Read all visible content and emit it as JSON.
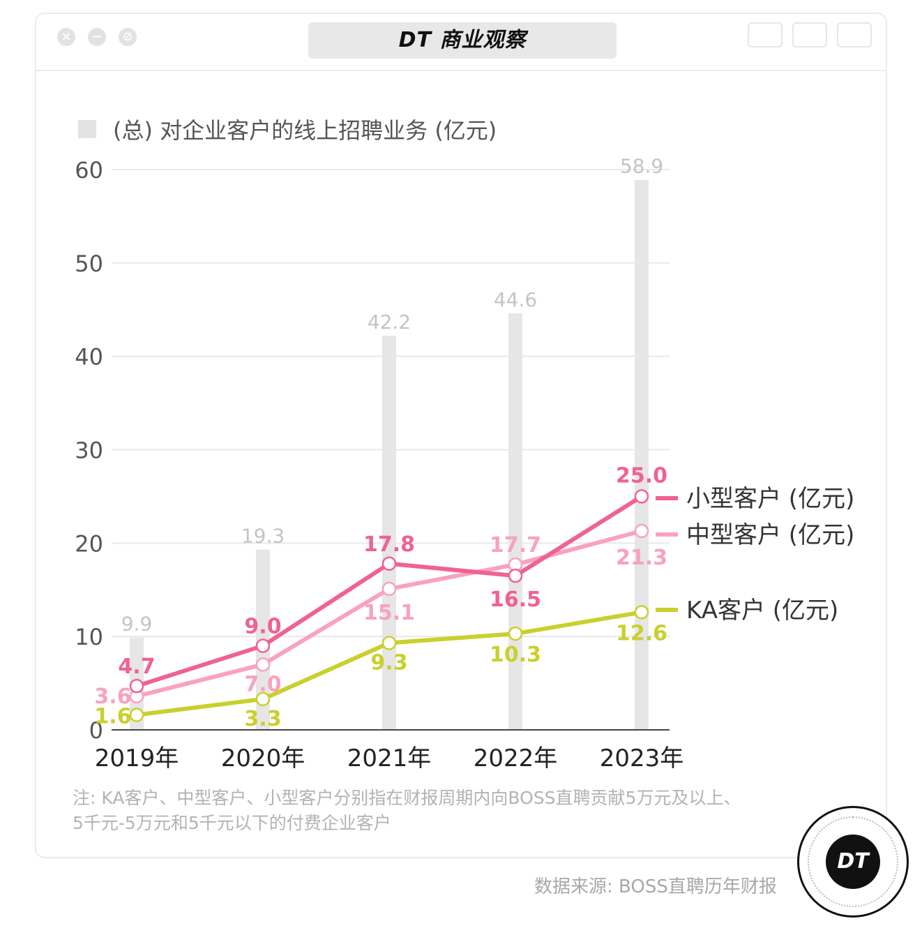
{
  "window": {
    "title": "DT 商业观察",
    "logo_text": "DT"
  },
  "note": {
    "line1": "注: KA客户、中型客户、小型客户分别指在财报周期内向BOSS直聘贡献5万元及以上、",
    "line2": "5千元-5万元和5千元以下的付费企业客户"
  },
  "source": "数据来源: BOSS直聘历年财报",
  "colors": {
    "small": "#f0628f",
    "medium": "#f8a3bd",
    "ka": "#c9d02c",
    "bar": "#e6e6e6",
    "bar_label": "#c4c4c4",
    "grid": "#e9e9e9",
    "axis": "#444444"
  },
  "chart_data": {
    "type": "bar+line",
    "categories": [
      "2019年",
      "2020年",
      "2021年",
      "2022年",
      "2023年"
    ],
    "ylim": [
      0,
      60
    ],
    "yticks": [
      0,
      10,
      20,
      30,
      40,
      50,
      60
    ],
    "bar_series": {
      "name": "(总) 对企业客户的线上招聘业务 (亿元)",
      "values": [
        9.9,
        19.3,
        42.2,
        44.6,
        58.9
      ]
    },
    "series": [
      {
        "key": "small",
        "name": "小型客户 (亿元)",
        "values": [
          4.7,
          9.0,
          17.8,
          16.5,
          25.0
        ]
      },
      {
        "key": "medium",
        "name": "中型客户 (亿元)",
        "values": [
          3.6,
          7.0,
          15.1,
          17.7,
          21.3
        ]
      },
      {
        "key": "ka",
        "name": "KA客户 (亿元)",
        "values": [
          1.6,
          3.3,
          9.3,
          10.3,
          12.6
        ]
      }
    ],
    "grid": true,
    "legend": "right"
  }
}
